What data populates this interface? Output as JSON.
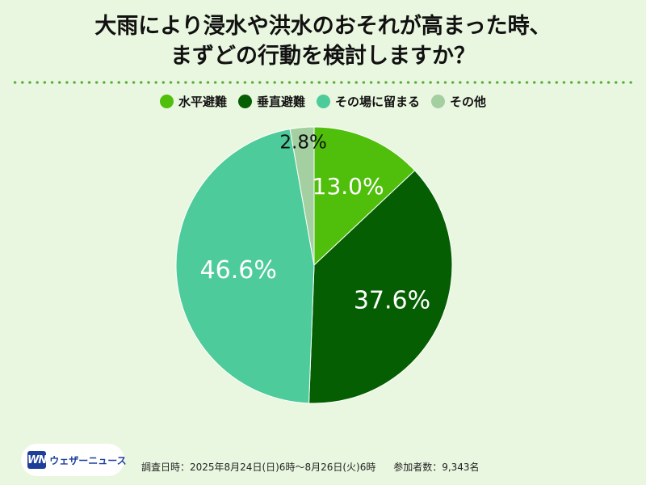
{
  "title": {
    "line1": "大雨により浸水や洪水のおそれが高まった時、",
    "line2": "まずどの行動を検討しますか？"
  },
  "chart_data": {
    "type": "pie",
    "categories": [
      "水平避難",
      "垂直避難",
      "その場に留まる",
      "その他"
    ],
    "values": [
      13.0,
      37.6,
      46.6,
      2.8
    ],
    "value_labels": [
      "13.0%",
      "37.6%",
      "46.6%",
      "2.8%"
    ],
    "colors": [
      "#4fbf0b",
      "#055f02",
      "#4ecb9b",
      "#a3cfa1"
    ],
    "legend_placement": "top"
  },
  "footer": {
    "logo_mark": "WN",
    "logo_text": "ウェザーニュース",
    "survey_period": "調査日時：2025年8月24日(日)6時～8月26日(火)6時",
    "respondents": "参加者数：9,343名"
  }
}
